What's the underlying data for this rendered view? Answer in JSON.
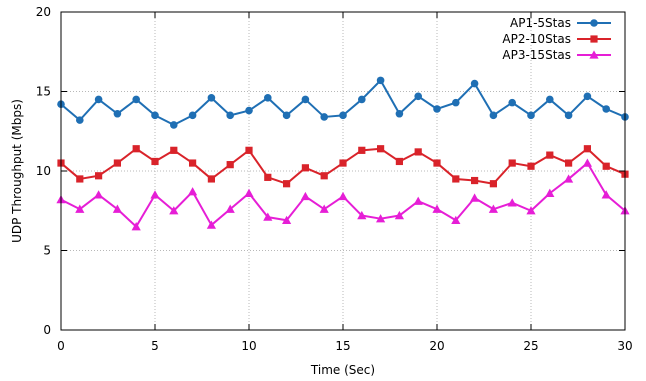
{
  "chart_data": {
    "type": "line",
    "xlabel": "Time (Sec)",
    "ylabel": "UDP Throughput (Mbps)",
    "xlim": [
      0,
      30
    ],
    "ylim": [
      0,
      20
    ],
    "xticks": [
      0,
      5,
      10,
      15,
      20,
      25,
      30
    ],
    "yticks": [
      0,
      5,
      10,
      15,
      20
    ],
    "grid": true,
    "legend_position": "top-right",
    "x": [
      0,
      1,
      2,
      3,
      4,
      5,
      6,
      7,
      8,
      9,
      10,
      11,
      12,
      13,
      14,
      15,
      16,
      17,
      18,
      19,
      20,
      21,
      22,
      23,
      24,
      25,
      26,
      27,
      28,
      29,
      30
    ],
    "series": [
      {
        "name": "AP1-5Stas",
        "color": "#1f6fb4",
        "marker": "circle",
        "values": [
          14.2,
          13.2,
          14.5,
          13.6,
          14.5,
          13.5,
          12.9,
          13.5,
          14.6,
          13.5,
          13.8,
          14.6,
          13.5,
          14.5,
          13.4,
          13.5,
          14.5,
          15.7,
          13.6,
          14.7,
          13.9,
          14.3,
          15.5,
          13.5,
          14.3,
          13.5,
          14.5,
          13.5,
          14.7,
          13.9,
          13.4
        ]
      },
      {
        "name": "AP2-10Stas",
        "color": "#d9232a",
        "marker": "square",
        "values": [
          10.5,
          9.5,
          9.7,
          10.5,
          11.4,
          10.6,
          11.3,
          10.5,
          9.5,
          10.4,
          11.3,
          9.6,
          9.2,
          10.2,
          9.7,
          10.5,
          11.3,
          11.4,
          10.6,
          11.2,
          10.5,
          9.5,
          9.4,
          9.2,
          10.5,
          10.3,
          11.0,
          10.5,
          11.4,
          10.3,
          9.8
        ]
      },
      {
        "name": "AP3-15Stas",
        "color": "#e61ed6",
        "marker": "triangle",
        "values": [
          8.2,
          7.6,
          8.5,
          7.6,
          6.5,
          8.5,
          7.5,
          8.7,
          6.6,
          7.6,
          8.6,
          7.1,
          6.9,
          8.4,
          7.6,
          8.4,
          7.2,
          7.0,
          7.2,
          8.1,
          7.6,
          6.9,
          8.3,
          7.6,
          8.0,
          7.5,
          8.6,
          9.5,
          10.5,
          8.5,
          7.5
        ]
      }
    ]
  }
}
